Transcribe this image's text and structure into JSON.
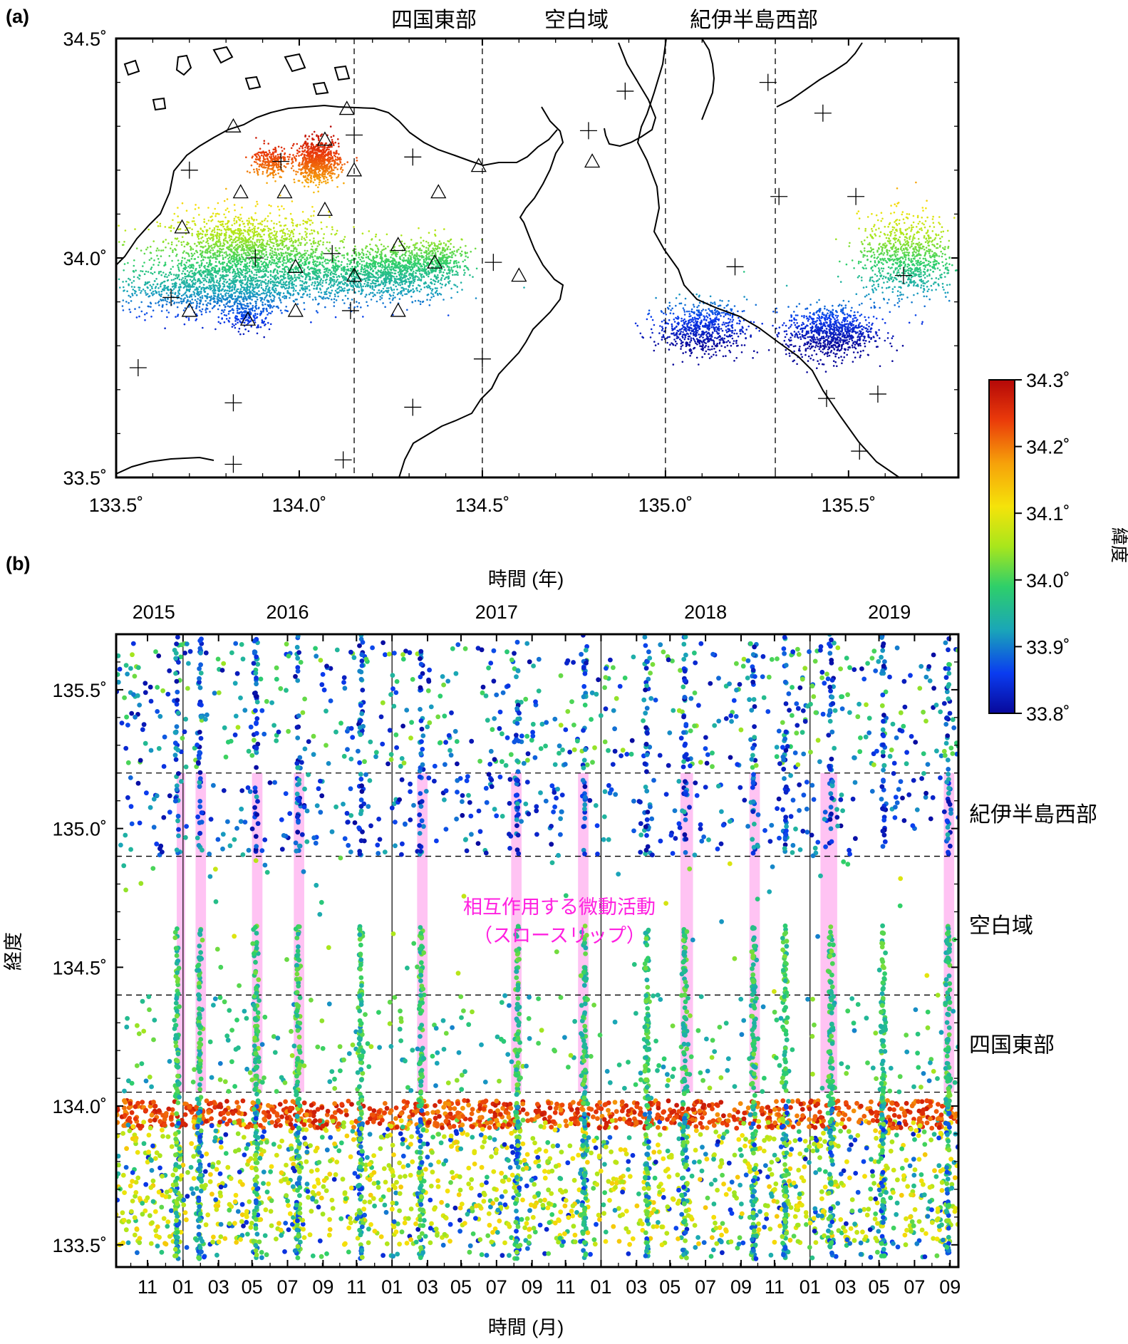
{
  "panel_a_label": "(a)",
  "panel_b_label": "(b)",
  "chart_data": [
    {
      "type": "scatter",
      "panel": "(a)",
      "description_of_map": "epicenter map of tremor events colored by latitude, with coastline, stations (triangles) and stations (crosses)",
      "xlim": [
        133.5,
        135.8
      ],
      "ylim": [
        33.5,
        34.5
      ],
      "x_tick_labels": [
        "133.5˚",
        "134.0˚",
        "134.5˚",
        "135.0˚",
        "135.5˚"
      ],
      "x_ticks": [
        133.5,
        134.0,
        134.5,
        135.0,
        135.5
      ],
      "y_tick_labels": [
        "33.5˚",
        "34.0˚",
        "34.5˚"
      ],
      "y_ticks": [
        33.5,
        34.0,
        34.5
      ],
      "region_boundaries_lon": [
        134.15,
        134.5,
        135.0,
        135.3
      ],
      "region_labels": [
        "四国東部",
        "空白域",
        "紀伊半島西部"
      ],
      "clusters": [
        {
          "lon": 133.85,
          "lat": 34.02,
          "dlon": 0.19,
          "dlat": 0.07,
          "n": 1500
        },
        {
          "lon": 133.76,
          "lat": 33.93,
          "dlon": 0.2,
          "dlat": 0.05,
          "n": 1100
        },
        {
          "lon": 134.1,
          "lat": 33.96,
          "dlon": 0.2,
          "dlat": 0.05,
          "n": 1000
        },
        {
          "lon": 134.28,
          "lat": 33.97,
          "dlon": 0.12,
          "dlat": 0.05,
          "n": 700
        },
        {
          "lon": 134.38,
          "lat": 34.0,
          "dlon": 0.08,
          "dlat": 0.04,
          "n": 300
        },
        {
          "lon": 134.05,
          "lat": 34.22,
          "dlon": 0.05,
          "dlat": 0.04,
          "n": 800
        },
        {
          "lon": 133.92,
          "lat": 34.22,
          "dlon": 0.04,
          "dlat": 0.03,
          "n": 250
        },
        {
          "lon": 133.86,
          "lat": 33.87,
          "dlon": 0.05,
          "dlat": 0.03,
          "n": 200
        },
        {
          "lon": 135.1,
          "lat": 33.84,
          "dlon": 0.1,
          "dlat": 0.05,
          "n": 700
        },
        {
          "lon": 135.45,
          "lat": 33.83,
          "dlon": 0.1,
          "dlat": 0.05,
          "n": 900
        },
        {
          "lon": 135.66,
          "lat": 34.0,
          "dlon": 0.11,
          "dlat": 0.08,
          "n": 900
        }
      ],
      "triangles": [
        [
          133.82,
          34.3
        ],
        [
          134.13,
          34.34
        ],
        [
          134.07,
          34.27
        ],
        [
          134.15,
          34.2
        ],
        [
          133.84,
          34.15
        ],
        [
          133.96,
          34.15
        ],
        [
          134.07,
          34.11
        ],
        [
          133.68,
          34.07
        ],
        [
          134.27,
          34.03
        ],
        [
          134.38,
          34.15
        ],
        [
          134.49,
          34.21
        ],
        [
          134.8,
          34.22
        ],
        [
          133.99,
          33.98
        ],
        [
          134.15,
          33.96
        ],
        [
          134.37,
          33.99
        ],
        [
          134.6,
          33.96
        ],
        [
          133.7,
          33.88
        ],
        [
          133.86,
          33.86
        ],
        [
          133.99,
          33.88
        ],
        [
          134.27,
          33.88
        ]
      ],
      "crosses": [
        [
          133.7,
          34.2
        ],
        [
          133.95,
          34.22
        ],
        [
          134.15,
          34.28
        ],
        [
          134.31,
          34.23
        ],
        [
          134.79,
          34.29
        ],
        [
          134.89,
          34.38
        ],
        [
          135.28,
          34.4
        ],
        [
          135.43,
          34.33
        ],
        [
          135.31,
          34.14
        ],
        [
          135.52,
          34.14
        ],
        [
          133.88,
          34.0
        ],
        [
          134.09,
          34.01
        ],
        [
          134.53,
          33.99
        ],
        [
          135.19,
          33.98
        ],
        [
          135.65,
          33.96
        ],
        [
          133.65,
          33.91
        ],
        [
          134.14,
          33.88
        ],
        [
          133.56,
          33.75
        ],
        [
          134.5,
          33.77
        ],
        [
          133.82,
          33.67
        ],
        [
          134.31,
          33.66
        ],
        [
          135.44,
          33.68
        ],
        [
          135.58,
          33.69
        ],
        [
          135.53,
          33.56
        ],
        [
          133.82,
          33.53
        ],
        [
          134.12,
          33.54
        ]
      ]
    },
    {
      "type": "scatter",
      "panel": "(b)",
      "title": "時間 (年)",
      "xlabel": "時間 (月)",
      "ylabel": "経度",
      "xlim": [
        2015.68,
        2019.71
      ],
      "ylim": [
        133.42,
        135.7
      ],
      "year_labels": [
        "2015",
        "2016",
        "2017",
        "2018",
        "2019"
      ],
      "year_label_x": [
        2015.86,
        2016.5,
        2017.5,
        2018.5,
        2019.38
      ],
      "year_lines": [
        2016.0,
        2017.0,
        2018.0,
        2019.0
      ],
      "month_tick_labels": [
        "11",
        "01",
        "03",
        "05",
        "07",
        "09",
        "11",
        "01",
        "03",
        "05",
        "07",
        "09",
        "11",
        "01",
        "03",
        "05",
        "07",
        "09",
        "11",
        "01",
        "03",
        "05",
        "07",
        "09"
      ],
      "month_ticks": [
        2015.83,
        2016.0,
        2016.17,
        2016.33,
        2016.5,
        2016.67,
        2016.83,
        2017.0,
        2017.17,
        2017.33,
        2017.5,
        2017.67,
        2017.83,
        2018.0,
        2018.17,
        2018.33,
        2018.5,
        2018.67,
        2018.83,
        2019.0,
        2019.17,
        2019.33,
        2019.5,
        2019.67
      ],
      "y_tick_labels": [
        "133.5˚",
        "134.0˚",
        "134.5˚",
        "135.0˚",
        "135.5˚"
      ],
      "y_ticks": [
        133.5,
        134.0,
        134.5,
        135.0,
        135.5
      ],
      "region_boundaries_lon": [
        134.05,
        134.4,
        134.9,
        135.2
      ],
      "region_labels": [
        "紀伊半島西部",
        "空白域",
        "四国東部"
      ],
      "region_label_lon": [
        135.05,
        134.65,
        134.22
      ],
      "annotation": [
        "相互作用する微動活動",
        "（スロースリップ）"
      ],
      "shaded_intervals": [
        [
          2015.97,
          2016.01
        ],
        [
          2016.06,
          2016.11
        ],
        [
          2016.33,
          2016.38
        ],
        [
          2016.53,
          2016.58
        ],
        [
          2017.12,
          2017.17
        ],
        [
          2017.57,
          2017.62
        ],
        [
          2017.89,
          2017.94
        ],
        [
          2018.38,
          2018.44
        ],
        [
          2018.71,
          2018.76
        ],
        [
          2019.05,
          2019.13
        ],
        [
          2019.64,
          2019.69
        ]
      ],
      "swarm_episodes": [
        2015.97,
        2016.08,
        2016.35,
        2016.55,
        2016.85,
        2017.14,
        2017.6,
        2017.92,
        2018.22,
        2018.4,
        2018.73,
        2018.88,
        2019.1,
        2019.35,
        2019.66
      ]
    }
  ],
  "colorbar": {
    "label": "緯度",
    "range": [
      33.8,
      34.3
    ],
    "tick_labels": [
      "33.8˚",
      "33.9˚",
      "34.0˚",
      "34.1˚",
      "34.2˚",
      "34.3˚"
    ],
    "ticks": [
      33.8,
      33.9,
      34.0,
      34.1,
      34.2,
      34.3
    ],
    "colors": [
      "#08089a",
      "#0a3cf0",
      "#1aa6b8",
      "#2ecf6a",
      "#a8e61c",
      "#f5e30a",
      "#f6a10a",
      "#ea3a0a",
      "#b40808"
    ]
  },
  "colors": {
    "annotation": "#ff20e0",
    "shade": "#ffb4f0"
  }
}
